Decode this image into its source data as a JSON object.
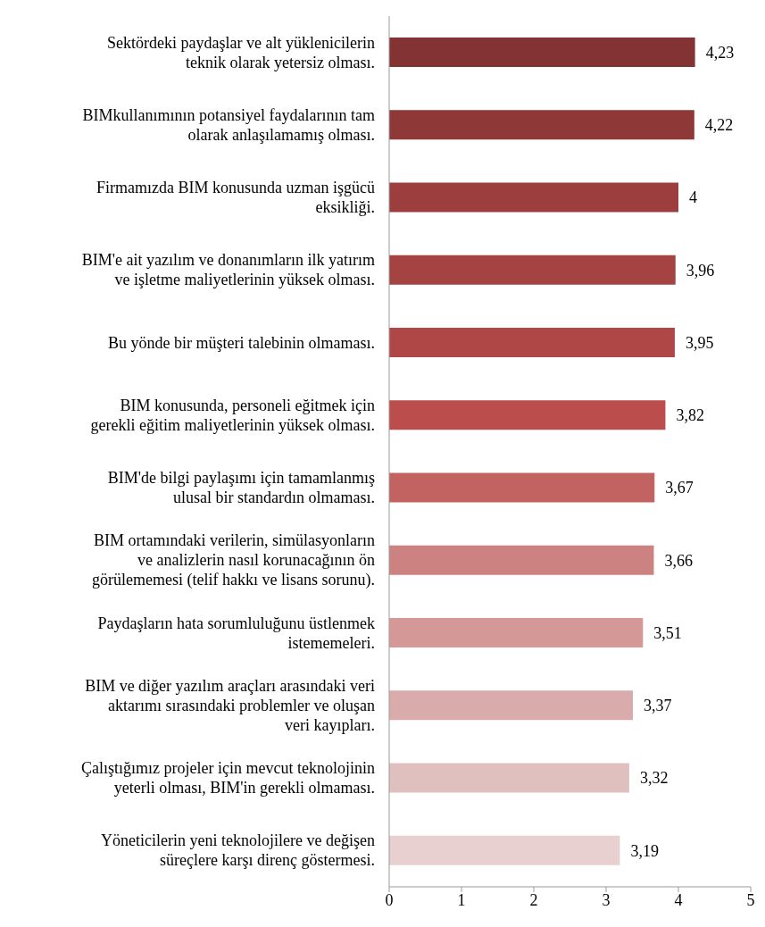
{
  "chart_data": {
    "type": "bar",
    "orientation": "horizontal",
    "categories": [
      "Sektördeki paydaşlar ve alt yüklenicilerin\nteknik olarak yetersiz olması.",
      "BIMkullanımının potansiyel faydalarının tam\nolarak anlaşılamamış olması.",
      "Firmamızda BIM konusunda uzman işgücü\neksikliği.",
      "BIM'e ait yazılım ve donanımların ilk yatırım\nve işletme maliyetlerinin yüksek olması.",
      "Bu yönde bir müşteri talebinin olmaması.",
      "BIM konusunda, personeli eğitmek için\ngerekli eğitim maliyetlerinin yüksek olması.",
      "BIM'de bilgi paylaşımı için tamamlanmış\nulusal bir standardın olmaması.",
      "BIM ortamındaki verilerin, simülasyonların\nve analizlerin nasıl korunacağının ön\ngörülememesi (telif hakkı ve lisans sorunu).",
      "Paydaşların hata sorumluluğunu üstlenmek\nistememeleri.",
      "BIM ve diğer yazılım araçları arasındaki veri\naktarımı sırasındaki problemler ve oluşan\nveri kayıpları.",
      "Çalıştığımız projeler için mevcut teknolojinin\nyeterli olması, BIM'in gerekli olmaması.",
      "Yöneticilerin yeni teknolojilere ve değişen\nsüreçlere karşı direnç göstermesi."
    ],
    "values": [
      4.23,
      4.22,
      4,
      3.96,
      3.95,
      3.82,
      3.67,
      3.66,
      3.51,
      3.37,
      3.32,
      3.19
    ],
    "value_labels": [
      "4,23",
      "4,22",
      "4",
      "3,96",
      "3,95",
      "3,82",
      "3,67",
      "3,66",
      "3,51",
      "3,37",
      "3,32",
      "3,19"
    ],
    "colors": [
      "#833333",
      "#8e3838",
      "#9b3e3d",
      "#a54242",
      "#b04747",
      "#bb4d4c",
      "#c36361",
      "#cc8280",
      "#d49997",
      "#d9abab",
      "#e0bfbf",
      "#e8cfd0"
    ],
    "xlim": [
      0,
      5
    ],
    "xticks": [
      0,
      1,
      2,
      3,
      4,
      5
    ],
    "grid": false,
    "legend": false
  }
}
